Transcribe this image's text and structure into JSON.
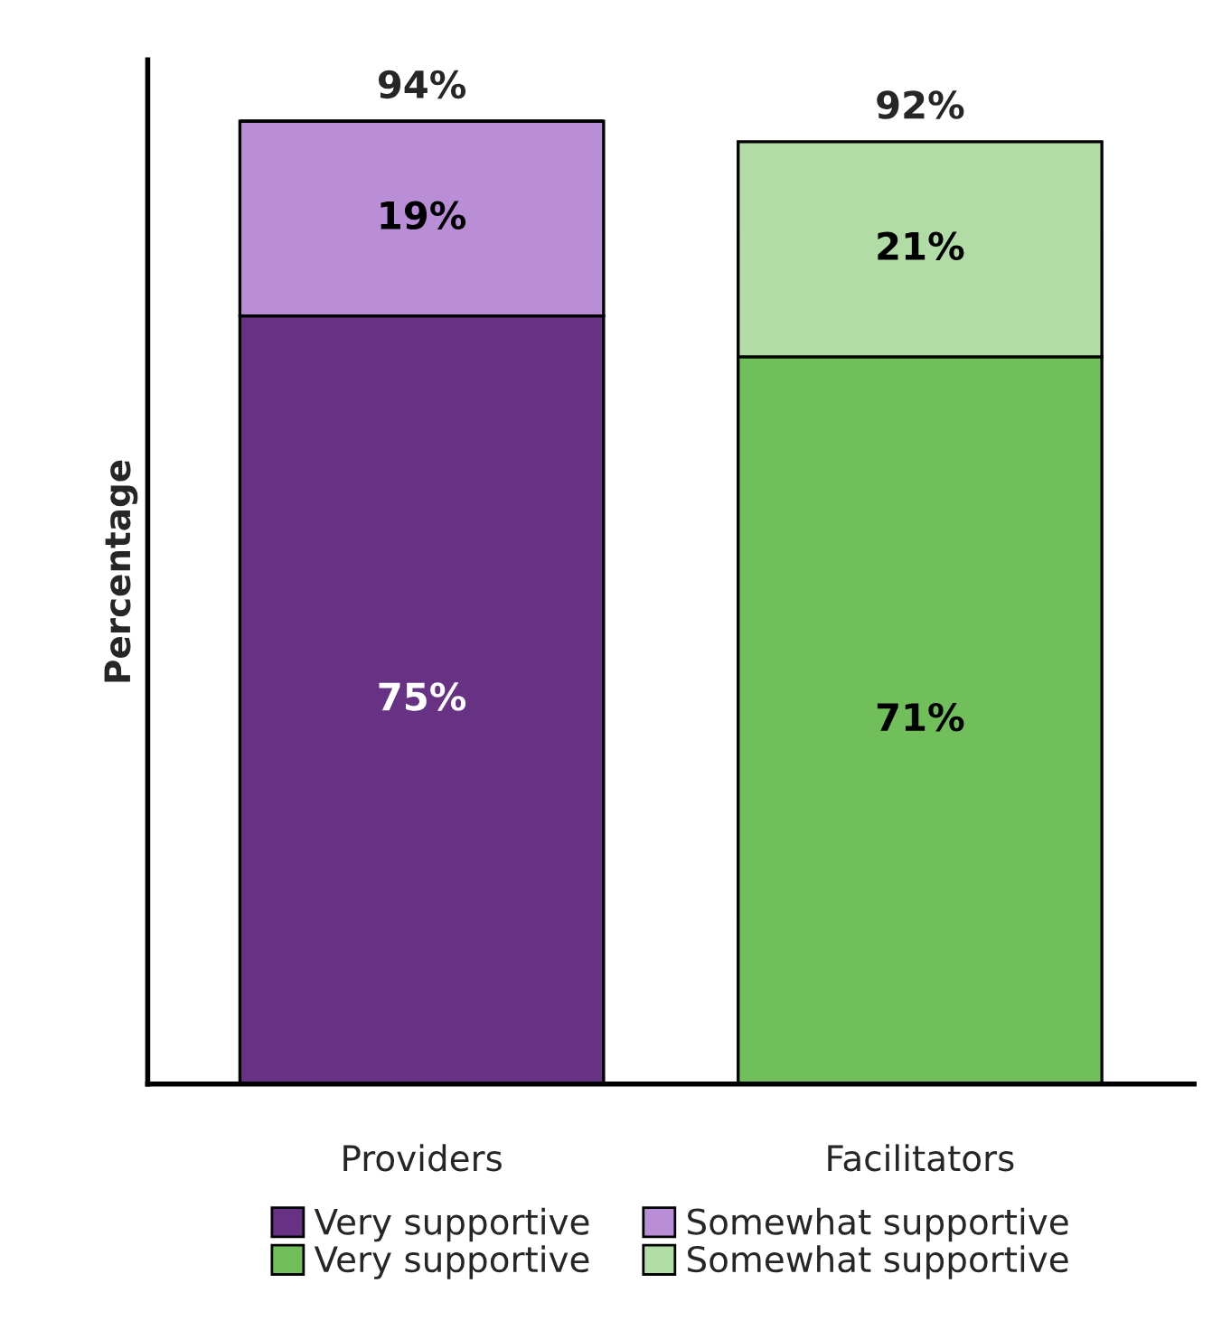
{
  "chart_data": {
    "type": "bar",
    "stacked": true,
    "ylabel": "Percentage",
    "categories": [
      "Providers",
      "Facilitators"
    ],
    "series": [
      {
        "name": "Very supportive",
        "color": "#673184",
        "values": [
          75,
          null
        ],
        "value_labels": [
          "75%",
          null
        ]
      },
      {
        "name": "Somewhat supportive",
        "color": "#b98ed6",
        "values": [
          19,
          null
        ],
        "value_labels": [
          "19%",
          null
        ]
      },
      {
        "name": "Very supportive",
        "color": "#70bf5a",
        "values": [
          null,
          71
        ],
        "value_labels": [
          null,
          "71%"
        ]
      },
      {
        "name": "Somewhat supportive",
        "color": "#b2dca5",
        "values": [
          null,
          21
        ],
        "value_labels": [
          null,
          "21%"
        ]
      }
    ],
    "totals": [
      "94%",
      "92%"
    ],
    "ylim": [
      0,
      100
    ],
    "tick_labels": "x",
    "grid": false,
    "legend": "bottom"
  }
}
